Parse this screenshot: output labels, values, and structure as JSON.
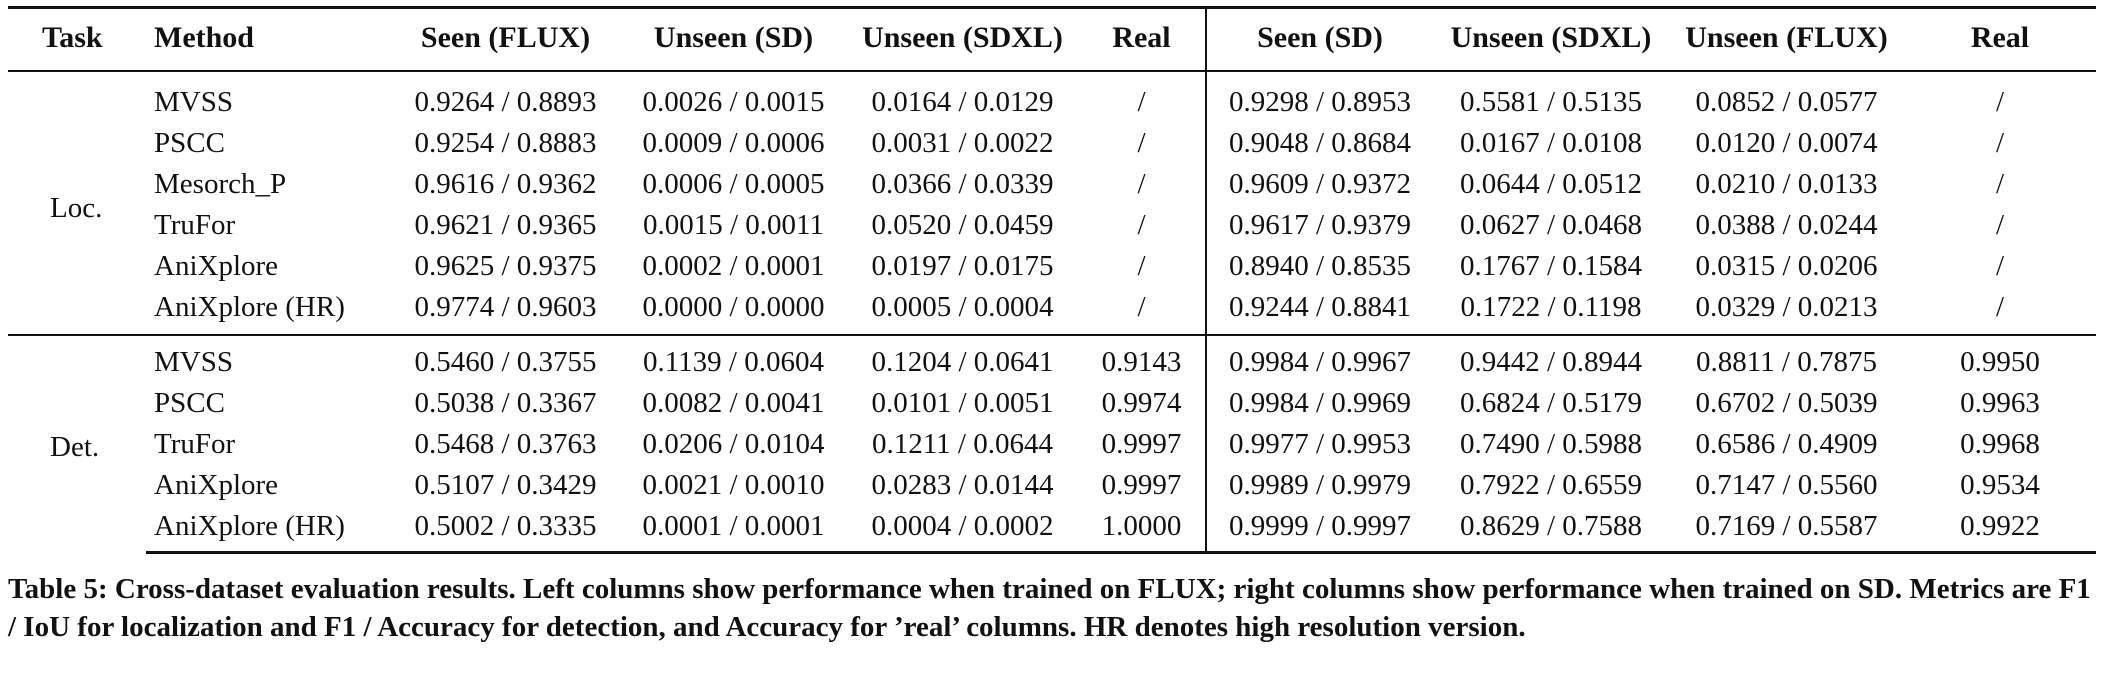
{
  "table": {
    "headers": [
      "Task",
      "Method",
      "Seen (FLUX)",
      "Unseen (SD)",
      "Unseen (SDXL)",
      "Real",
      "Seen (SD)",
      "Unseen (SDXL)",
      "Unseen (FLUX)",
      "Real"
    ],
    "groups": [
      {
        "task": "Loc.",
        "rows": [
          {
            "method": "MVSS",
            "cells": [
              "0.9264 / 0.8893",
              "0.0026 / 0.0015",
              "0.0164 / 0.0129",
              "/",
              "0.9298 / 0.8953",
              "0.5581 / 0.5135",
              "0.0852 / 0.0577",
              "/"
            ]
          },
          {
            "method": "PSCC",
            "cells": [
              "0.9254 / 0.8883",
              "0.0009 / 0.0006",
              "0.0031 / 0.0022",
              "/",
              "0.9048 / 0.8684",
              "0.0167 / 0.0108",
              "0.0120 / 0.0074",
              "/"
            ]
          },
          {
            "method": "Mesorch_P",
            "cells": [
              "0.9616 / 0.9362",
              "0.0006 / 0.0005",
              "0.0366 / 0.0339",
              "/",
              "0.9609 / 0.9372",
              "0.0644 / 0.0512",
              "0.0210 / 0.0133",
              "/"
            ]
          },
          {
            "method": "TruFor",
            "cells": [
              "0.9621 / 0.9365",
              "0.0015 / 0.0011",
              "0.0520 / 0.0459",
              "/",
              "0.9617 / 0.9379",
              "0.0627 / 0.0468",
              "0.0388 / 0.0244",
              "/"
            ]
          },
          {
            "method": "AniXplore",
            "cells": [
              "0.9625 / 0.9375",
              "0.0002 / 0.0001",
              "0.0197 / 0.0175",
              "/",
              "0.8940 / 0.8535",
              "0.1767 / 0.1584",
              "0.0315 / 0.0206",
              "/"
            ]
          },
          {
            "method": "AniXplore (HR)",
            "cells": [
              "0.9774 / 0.9603",
              "0.0000 / 0.0000",
              "0.0005 / 0.0004",
              "/",
              "0.9244 / 0.8841",
              "0.1722 / 0.1198",
              "0.0329 / 0.0213",
              "/"
            ]
          }
        ]
      },
      {
        "task": "Det.",
        "rows": [
          {
            "method": "MVSS",
            "cells": [
              "0.5460 / 0.3755",
              "0.1139 / 0.0604",
              "0.1204 / 0.0641",
              "0.9143",
              "0.9984 / 0.9967",
              "0.9442 / 0.8944",
              "0.8811 / 0.7875",
              "0.9950"
            ]
          },
          {
            "method": "PSCC",
            "cells": [
              "0.5038 / 0.3367",
              "0.0082 / 0.0041",
              "0.0101 / 0.0051",
              "0.9974",
              "0.9984 / 0.9969",
              "0.6824 / 0.5179",
              "0.6702 / 0.5039",
              "0.9963"
            ]
          },
          {
            "method": "TruFor",
            "cells": [
              "0.5468 / 0.3763",
              "0.0206 / 0.0104",
              "0.1211 / 0.0644",
              "0.9997",
              "0.9977 / 0.9953",
              "0.7490 / 0.5988",
              "0.6586 / 0.4909",
              "0.9968"
            ]
          },
          {
            "method": "AniXplore",
            "cells": [
              "0.5107 / 0.3429",
              "0.0021 / 0.0010",
              "0.0283 / 0.0144",
              "0.9997",
              "0.9989 / 0.9979",
              "0.7922 / 0.6559",
              "0.7147 / 0.5560",
              "0.9534"
            ]
          },
          {
            "method": "AniXplore (HR)",
            "cells": [
              "0.5002 / 0.3335",
              "0.0001 / 0.0001",
              "0.0004 / 0.0002",
              "1.0000",
              "0.9999 / 0.9997",
              "0.8629 / 0.7588",
              "0.7169 / 0.5587",
              "0.9922"
            ]
          }
        ]
      }
    ]
  },
  "caption": "Table 5: Cross-dataset evaluation results. Left columns show performance when trained on FLUX; right columns show performance when trained on SD. Metrics are F1 / IoU for localization and F1 / Accuracy for detection, and Accuracy for ’real’ columns. HR denotes high resolution version."
}
